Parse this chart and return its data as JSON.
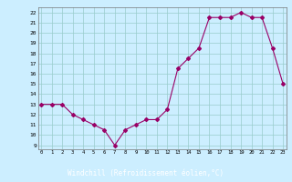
{
  "x": [
    0,
    1,
    2,
    3,
    4,
    5,
    6,
    7,
    8,
    9,
    10,
    11,
    12,
    13,
    14,
    15,
    16,
    17,
    18,
    19,
    20,
    21,
    22,
    23
  ],
  "y": [
    13,
    13,
    13,
    12,
    11.5,
    11,
    10.5,
    9,
    10.5,
    11,
    11.5,
    11.5,
    12.5,
    16.5,
    17.5,
    18.5,
    21.5,
    21.5,
    21.5,
    22,
    21.5,
    21.5,
    18.5,
    15
  ],
  "xlabel": "Windchill (Refroidissement éolien,°C)",
  "yticks": [
    9,
    10,
    11,
    12,
    13,
    14,
    15,
    16,
    17,
    18,
    19,
    20,
    21,
    22
  ],
  "xticks": [
    0,
    1,
    2,
    3,
    4,
    5,
    6,
    7,
    8,
    9,
    10,
    11,
    12,
    13,
    14,
    15,
    16,
    17,
    18,
    19,
    20,
    21,
    22,
    23
  ],
  "line_color": "#990066",
  "marker": "D",
  "marker_size": 2.0,
  "bg_color": "#cceeff",
  "grid_color": "#99cccc",
  "xlabel_bg": "#800080",
  "xlabel_fg": "#ffffff",
  "ylim_min": 8.6,
  "ylim_max": 22.5,
  "xlim_min": -0.3,
  "xlim_max": 23.3
}
